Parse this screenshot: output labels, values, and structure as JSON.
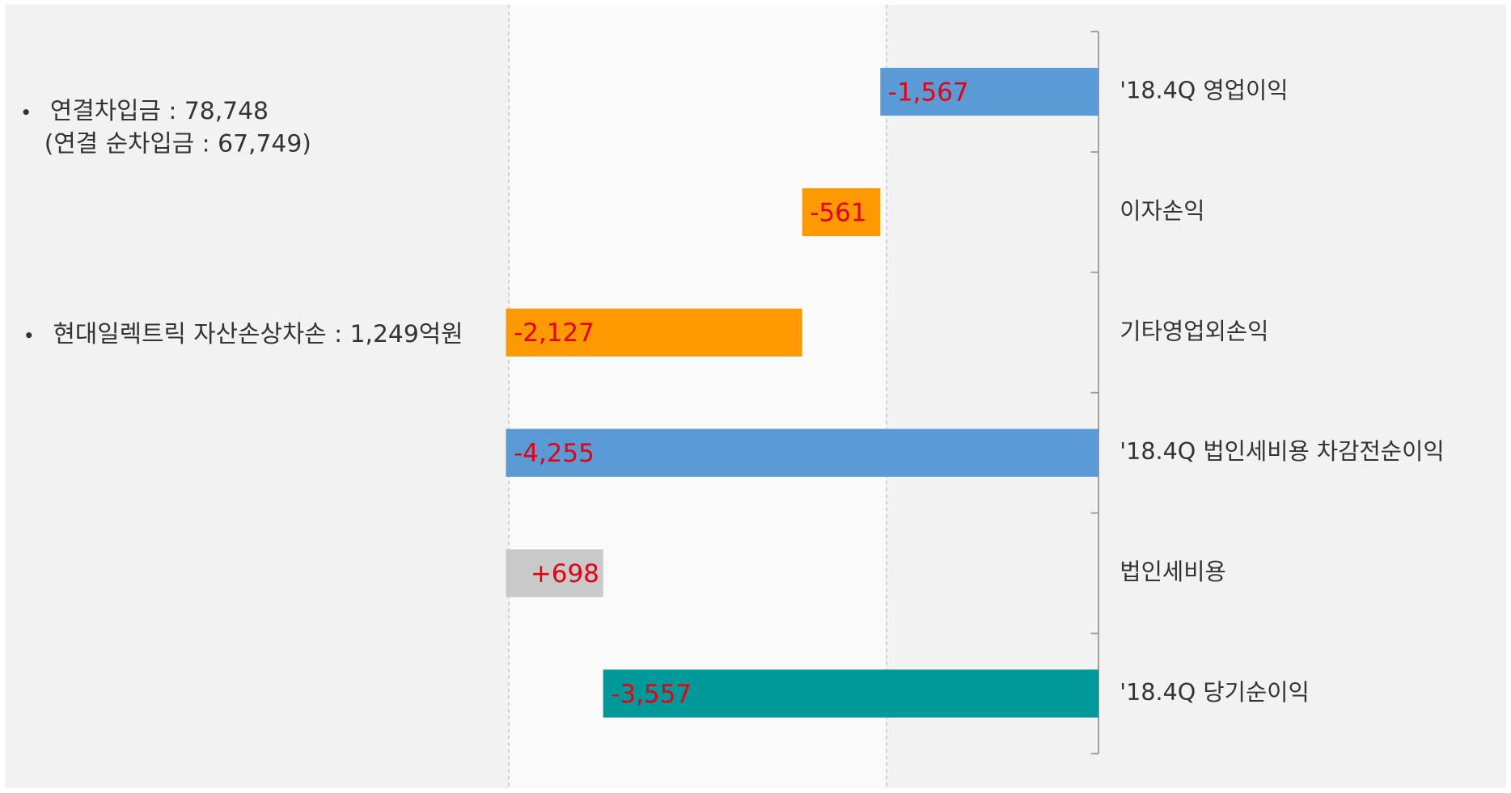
{
  "chart_data": {
    "type": "waterfall",
    "orientation": "horizontal",
    "categories": [
      "'18.4Q 영업이익",
      "이자손익",
      "기타영업외손익",
      "'18.4Q 법인세비용 차감전순이익",
      "법인세비용",
      "'18.4Q 당기순이익"
    ],
    "values": [
      -1567,
      -561,
      -2127,
      -4255,
      698,
      -3557
    ],
    "value_labels": [
      "-1,567",
      "-561",
      "-2,127",
      "-4,255",
      "+698",
      "-3,557"
    ],
    "is_total": [
      true,
      false,
      false,
      true,
      false,
      true
    ],
    "colors": [
      "#5b9bd5",
      "#ff9900",
      "#ff9900",
      "#5b9bd5",
      "#c9c9c9",
      "#009999"
    ],
    "xlim": [
      -4255,
      0
    ],
    "annotations": [
      "연결차입금 : 78,748",
      "(연결 순차입금 : 67,749)",
      "현대일렉트릭 자산손상차손 : 1,249억원"
    ]
  }
}
